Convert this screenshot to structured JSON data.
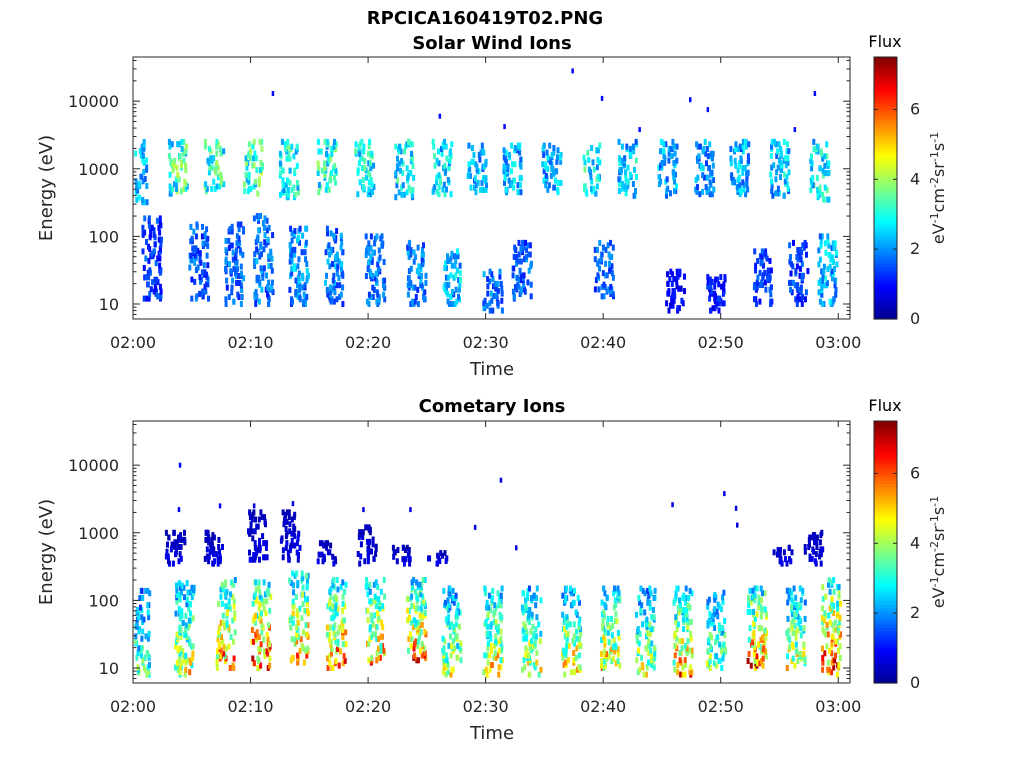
{
  "figure_title": "RPCICA160419T02.PNG",
  "colors": {
    "colormap": [
      "#00008f",
      "#0000ff",
      "#0080ff",
      "#00ffff",
      "#80ff80",
      "#ffff00",
      "#ff8000",
      "#ff0000",
      "#800000"
    ]
  },
  "chart_data": [
    {
      "type": "heatmap",
      "title": "Solar Wind Ions",
      "xlabel": "Time",
      "ylabel": "Energy (eV)",
      "x_range": [
        "02:00",
        "03:00"
      ],
      "x_ticks": [
        "02:00",
        "02:10",
        "02:20",
        "02:30",
        "02:40",
        "02:50",
        "03:00"
      ],
      "y_scale": "log",
      "y_range": [
        6,
        45000
      ],
      "y_ticks": [
        "10",
        "100",
        "1000",
        "10000"
      ],
      "y_tick_values": [
        10,
        100,
        1000,
        10000
      ],
      "colorbar": {
        "label": "Flux",
        "unit_base": [
          "eV",
          "cm",
          "sr",
          "s"
        ],
        "unit_exp": [
          "-1",
          "-2",
          "-1",
          "-1"
        ],
        "range": [
          0,
          7.5
        ],
        "ticks": [
          "0",
          "2",
          "4",
          "6"
        ],
        "tick_values": [
          0,
          2,
          4,
          6
        ]
      },
      "clusters": [
        {
          "t": 0.4,
          "e_min": 320,
          "e_max": 2500,
          "flux": 2.5
        },
        {
          "t": 3.7,
          "e_min": 430,
          "e_max": 2500,
          "flux": 3.5
        },
        {
          "t": 6.8,
          "e_min": 430,
          "e_max": 2500,
          "flux": 3.5
        },
        {
          "t": 10.1,
          "e_min": 430,
          "e_max": 2500,
          "flux": 3.5
        },
        {
          "t": 13.2,
          "e_min": 380,
          "e_max": 2500,
          "flux": 3.3
        },
        {
          "t": 16.4,
          "e_min": 450,
          "e_max": 2500,
          "flux": 3.3
        },
        {
          "t": 19.6,
          "e_min": 420,
          "e_max": 2500,
          "flux": 3.0
        },
        {
          "t": 23.0,
          "e_min": 380,
          "e_max": 2500,
          "flux": 3.0
        },
        {
          "t": 26.2,
          "e_min": 420,
          "e_max": 2500,
          "flux": 2.8
        },
        {
          "t": 29.2,
          "e_min": 450,
          "e_max": 2200,
          "flux": 2.4
        },
        {
          "t": 32.2,
          "e_min": 450,
          "e_max": 2200,
          "flux": 2.5
        },
        {
          "t": 35.5,
          "e_min": 450,
          "e_max": 2200,
          "flux": 2.5
        },
        {
          "t": 38.8,
          "e_min": 430,
          "e_max": 2200,
          "flux": 3.0
        },
        {
          "t": 42.0,
          "e_min": 400,
          "e_max": 2500,
          "flux": 2.7
        },
        {
          "t": 45.4,
          "e_min": 400,
          "e_max": 2500,
          "flux": 2.4
        },
        {
          "t": 48.5,
          "e_min": 420,
          "e_max": 2500,
          "flux": 2.3
        },
        {
          "t": 51.5,
          "e_min": 420,
          "e_max": 2500,
          "flux": 2.5
        },
        {
          "t": 54.9,
          "e_min": 400,
          "e_max": 2500,
          "flux": 2.6
        },
        {
          "t": 58.3,
          "e_min": 350,
          "e_max": 2500,
          "flux": 3.0
        },
        {
          "t": 1.5,
          "e_min": 12,
          "e_max": 200,
          "flux": 1.5
        },
        {
          "t": 5.5,
          "e_min": 12,
          "e_max": 150,
          "flux": 1.8
        },
        {
          "t": 8.5,
          "e_min": 10,
          "e_max": 150,
          "flux": 1.8
        },
        {
          "t": 11.0,
          "e_min": 10,
          "e_max": 200,
          "flux": 2.0
        },
        {
          "t": 14.0,
          "e_min": 10,
          "e_max": 130,
          "flux": 2.2
        },
        {
          "t": 17.0,
          "e_min": 10,
          "e_max": 130,
          "flux": 2.0
        },
        {
          "t": 20.5,
          "e_min": 10,
          "e_max": 100,
          "flux": 2.0
        },
        {
          "t": 24.0,
          "e_min": 10,
          "e_max": 80,
          "flux": 2.0
        },
        {
          "t": 27.0,
          "e_min": 10,
          "e_max": 60,
          "flux": 2.5
        },
        {
          "t": 30.5,
          "e_min": 8,
          "e_max": 30,
          "flux": 2.0
        },
        {
          "t": 33.0,
          "e_min": 12,
          "e_max": 80,
          "flux": 1.8
        },
        {
          "t": 40.0,
          "e_min": 12,
          "e_max": 80,
          "flux": 1.8
        },
        {
          "t": 46.0,
          "e_min": 8,
          "e_max": 30,
          "flux": 1.0
        },
        {
          "t": 49.5,
          "e_min": 8,
          "e_max": 25,
          "flux": 1.2
        },
        {
          "t": 53.5,
          "e_min": 10,
          "e_max": 60,
          "flux": 1.5
        },
        {
          "t": 56.5,
          "e_min": 10,
          "e_max": 80,
          "flux": 1.5
        },
        {
          "t": 59.0,
          "e_min": 10,
          "e_max": 100,
          "flux": 2.5
        }
      ],
      "sparse": [
        {
          "t": 11.8,
          "e": 13000,
          "flux": 1.0
        },
        {
          "t": 37.3,
          "e": 28000,
          "flux": 1.0
        },
        {
          "t": 39.8,
          "e": 11000,
          "flux": 1.0
        },
        {
          "t": 47.3,
          "e": 10500,
          "flux": 1.0
        },
        {
          "t": 48.8,
          "e": 7500,
          "flux": 1.0
        },
        {
          "t": 57.9,
          "e": 13000,
          "flux": 1.0
        },
        {
          "t": 26.0,
          "e": 6000,
          "flux": 1.0
        },
        {
          "t": 31.5,
          "e": 4200,
          "flux": 1.0
        },
        {
          "t": 43.0,
          "e": 3800,
          "flux": 1.0
        },
        {
          "t": 56.2,
          "e": 3800,
          "flux": 1.0
        }
      ]
    },
    {
      "type": "heatmap",
      "title": "Cometary Ions",
      "xlabel": "Time",
      "ylabel": "Energy (eV)",
      "x_range": [
        "02:00",
        "03:00"
      ],
      "x_ticks": [
        "02:00",
        "02:10",
        "02:20",
        "02:30",
        "02:40",
        "02:50",
        "03:00"
      ],
      "y_scale": "log",
      "y_range": [
        6,
        45000
      ],
      "y_ticks": [
        "10",
        "100",
        "1000",
        "10000"
      ],
      "y_tick_values": [
        10,
        100,
        1000,
        10000
      ],
      "colorbar": {
        "label": "Flux",
        "unit_base": [
          "eV",
          "cm",
          "sr",
          "s"
        ],
        "unit_exp": [
          "-1",
          "-2",
          "-1",
          "-1"
        ],
        "range": [
          0,
          7.5
        ],
        "ticks": [
          "0",
          "2",
          "4",
          "6"
        ],
        "tick_values": [
          0,
          2,
          4,
          6
        ]
      },
      "clusters": [
        {
          "t": 0.5,
          "e_min": 8,
          "e_max": 150,
          "flux": 3.5
        },
        {
          "t": 4.3,
          "e_min": 8,
          "e_max": 180,
          "flux": 4.5
        },
        {
          "t": 7.8,
          "e_min": 10,
          "e_max": 200,
          "flux": 5.8
        },
        {
          "t": 10.8,
          "e_min": 10,
          "e_max": 200,
          "flux": 6.0
        },
        {
          "t": 14.0,
          "e_min": 12,
          "e_max": 250,
          "flux": 5.5
        },
        {
          "t": 17.2,
          "e_min": 10,
          "e_max": 200,
          "flux": 5.7
        },
        {
          "t": 20.5,
          "e_min": 12,
          "e_max": 200,
          "flux": 5.3
        },
        {
          "t": 24.0,
          "e_min": 12,
          "e_max": 200,
          "flux": 5.6
        },
        {
          "t": 27.0,
          "e_min": 8,
          "e_max": 150,
          "flux": 4.3
        },
        {
          "t": 30.5,
          "e_min": 8,
          "e_max": 150,
          "flux": 5.0
        },
        {
          "t": 33.8,
          "e_min": 8,
          "e_max": 150,
          "flux": 4.6
        },
        {
          "t": 37.2,
          "e_min": 8,
          "e_max": 150,
          "flux": 4.8
        },
        {
          "t": 40.5,
          "e_min": 10,
          "e_max": 150,
          "flux": 4.8
        },
        {
          "t": 43.5,
          "e_min": 8,
          "e_max": 150,
          "flux": 4.3
        },
        {
          "t": 46.7,
          "e_min": 8,
          "e_max": 150,
          "flux": 5.3
        },
        {
          "t": 49.5,
          "e_min": 10,
          "e_max": 130,
          "flux": 3.8
        },
        {
          "t": 53.0,
          "e_min": 10,
          "e_max": 150,
          "flux": 5.8
        },
        {
          "t": 56.3,
          "e_min": 10,
          "e_max": 150,
          "flux": 4.5
        },
        {
          "t": 59.3,
          "e_min": 8,
          "e_max": 200,
          "flux": 6.2
        },
        {
          "t": 3.5,
          "e_min": 350,
          "e_max": 1000,
          "flux": 0.7
        },
        {
          "t": 6.8,
          "e_min": 350,
          "e_max": 1000,
          "flux": 0.7
        },
        {
          "t": 10.5,
          "e_min": 400,
          "e_max": 2000,
          "flux": 0.7
        },
        {
          "t": 13.3,
          "e_min": 400,
          "e_max": 2000,
          "flux": 0.7
        },
        {
          "t": 16.4,
          "e_min": 350,
          "e_max": 700,
          "flux": 0.7
        },
        {
          "t": 19.8,
          "e_min": 350,
          "e_max": 1200,
          "flux": 0.7
        },
        {
          "t": 22.8,
          "e_min": 350,
          "e_max": 600,
          "flux": 0.7
        },
        {
          "t": 25.8,
          "e_min": 350,
          "e_max": 500,
          "flux": 0.8
        },
        {
          "t": 55.2,
          "e_min": 350,
          "e_max": 600,
          "flux": 0.8
        },
        {
          "t": 57.8,
          "e_min": 350,
          "e_max": 1000,
          "flux": 0.7
        }
      ],
      "sparse": [
        {
          "t": 3.9,
          "e": 10000,
          "flux": 1.0
        },
        {
          "t": 31.2,
          "e": 6000,
          "flux": 0.7
        },
        {
          "t": 3.8,
          "e": 2200,
          "flux": 0.8
        },
        {
          "t": 7.3,
          "e": 2500,
          "flux": 0.8
        },
        {
          "t": 10.2,
          "e": 2500,
          "flux": 0.7
        },
        {
          "t": 13.5,
          "e": 2700,
          "flux": 0.7
        },
        {
          "t": 19.5,
          "e": 2200,
          "flux": 0.7
        },
        {
          "t": 23.5,
          "e": 2200,
          "flux": 0.7
        },
        {
          "t": 45.8,
          "e": 2600,
          "flux": 0.7
        },
        {
          "t": 50.2,
          "e": 3800,
          "flux": 0.7
        },
        {
          "t": 51.2,
          "e": 2300,
          "flux": 0.7
        },
        {
          "t": 51.3,
          "e": 1300,
          "flux": 0.7
        },
        {
          "t": 29.0,
          "e": 1200,
          "flux": 0.7
        },
        {
          "t": 32.5,
          "e": 600,
          "flux": 0.7
        }
      ]
    }
  ]
}
